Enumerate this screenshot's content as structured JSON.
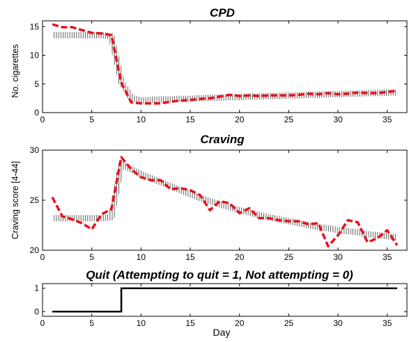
{
  "chart_data": [
    {
      "type": "line",
      "title": "CPD",
      "xlabel": "",
      "ylabel": "No. cigarettes",
      "xlim": [
        0,
        37
      ],
      "ylim": [
        0,
        16
      ],
      "xticks": [
        0,
        5,
        10,
        15,
        20,
        25,
        30,
        35
      ],
      "yticks": [
        0,
        5,
        10,
        15
      ],
      "grid": false,
      "series": [
        {
          "style": "dashed-red",
          "color": "#e8101b",
          "x": [
            1,
            2,
            3,
            4,
            5,
            6,
            7,
            8,
            9,
            10,
            11,
            12,
            13,
            14,
            15,
            16,
            17,
            18,
            19,
            20,
            21,
            22,
            23,
            24,
            25,
            26,
            27,
            28,
            29,
            30,
            31,
            32,
            33,
            34,
            35,
            36
          ],
          "y": [
            15.4,
            14.9,
            14.9,
            14.4,
            13.9,
            13.8,
            13.5,
            5.2,
            1.8,
            1.6,
            1.6,
            1.6,
            1.9,
            2.1,
            2.2,
            2.4,
            2.5,
            2.8,
            3.1,
            2.9,
            3.0,
            2.9,
            3.0,
            3.0,
            3.0,
            3.1,
            3.3,
            3.2,
            3.4,
            3.2,
            3.3,
            3.5,
            3.4,
            3.4,
            3.6,
            3.8
          ]
        },
        {
          "style": "hatched-fit",
          "color": "#555555",
          "x": [
            1,
            2,
            3,
            4,
            5,
            6,
            7,
            8,
            9,
            10,
            11,
            12,
            13,
            14,
            15,
            16,
            17,
            18,
            19,
            20,
            21,
            22,
            23,
            24,
            25,
            26,
            27,
            28,
            29,
            30,
            31,
            32,
            33,
            34,
            35,
            36
          ],
          "y": [
            13.5,
            13.5,
            13.5,
            13.5,
            13.5,
            13.5,
            13.3,
            5.4,
            2.6,
            2.1,
            2.2,
            2.3,
            2.3,
            2.4,
            2.4,
            2.5,
            2.6,
            2.6,
            2.7,
            2.7,
            2.8,
            2.8,
            2.9,
            2.9,
            3.0,
            3.0,
            3.1,
            3.1,
            3.2,
            3.2,
            3.3,
            3.3,
            3.4,
            3.4,
            3.5,
            3.5
          ]
        }
      ]
    },
    {
      "type": "line",
      "title": "Craving",
      "xlabel": "",
      "ylabel": "Craving score [4-44]",
      "xlim": [
        0,
        37
      ],
      "ylim": [
        20,
        30
      ],
      "xticks": [
        0,
        5,
        10,
        15,
        20,
        25,
        30,
        35
      ],
      "yticks": [
        20,
        25,
        30
      ],
      "grid": false,
      "series": [
        {
          "style": "dashed-red",
          "color": "#e8101b",
          "x": [
            1,
            2,
            3,
            4,
            5,
            6,
            7,
            8,
            9,
            10,
            11,
            12,
            13,
            14,
            15,
            16,
            17,
            18,
            19,
            20,
            21,
            22,
            23,
            24,
            25,
            26,
            27,
            28,
            29,
            30,
            31,
            32,
            33,
            34,
            35,
            36
          ],
          "y": [
            25.3,
            23.4,
            23.1,
            22.7,
            22.1,
            23.6,
            24.1,
            29.3,
            28.1,
            27.3,
            27.0,
            27.0,
            26.1,
            26.2,
            26.0,
            25.5,
            24.0,
            24.9,
            24.7,
            23.7,
            24.2,
            23.2,
            23.2,
            23.0,
            22.9,
            22.9,
            22.6,
            22.7,
            20.4,
            21.5,
            23.0,
            22.8,
            20.8,
            21.2,
            22.0,
            20.5
          ]
        },
        {
          "style": "hatched-fit",
          "color": "#555555",
          "x": [
            1,
            2,
            3,
            4,
            5,
            6,
            7,
            8,
            9,
            10,
            11,
            12,
            13,
            14,
            15,
            16,
            17,
            18,
            19,
            20,
            21,
            22,
            23,
            24,
            25,
            26,
            27,
            28,
            29,
            30,
            31,
            32,
            33,
            34,
            35,
            36
          ],
          "y": [
            23.2,
            23.2,
            23.2,
            23.2,
            23.2,
            23.2,
            23.3,
            28.6,
            28.1,
            27.6,
            27.2,
            26.8,
            26.4,
            26.0,
            25.6,
            25.2,
            24.9,
            24.6,
            24.3,
            24.0,
            23.8,
            23.5,
            23.3,
            23.1,
            22.9,
            22.7,
            22.5,
            22.3,
            22.2,
            22.0,
            21.9,
            21.8,
            21.6,
            21.5,
            21.4,
            21.3
          ]
        }
      ]
    },
    {
      "type": "line",
      "title": "Quit (Attempting to quit = 1, Not attempting = 0)",
      "xlabel": "Day",
      "ylabel": "",
      "xlim": [
        0,
        37
      ],
      "ylim": [
        -0.2,
        1.2
      ],
      "xticks": [
        0,
        5,
        10,
        15,
        20,
        25,
        30,
        35
      ],
      "yticks": [
        0,
        1
      ],
      "grid": false,
      "series": [
        {
          "style": "step",
          "color": "#000000",
          "x": [
            1,
            8,
            8,
            36
          ],
          "y": [
            0,
            0,
            1,
            1
          ]
        }
      ]
    }
  ]
}
